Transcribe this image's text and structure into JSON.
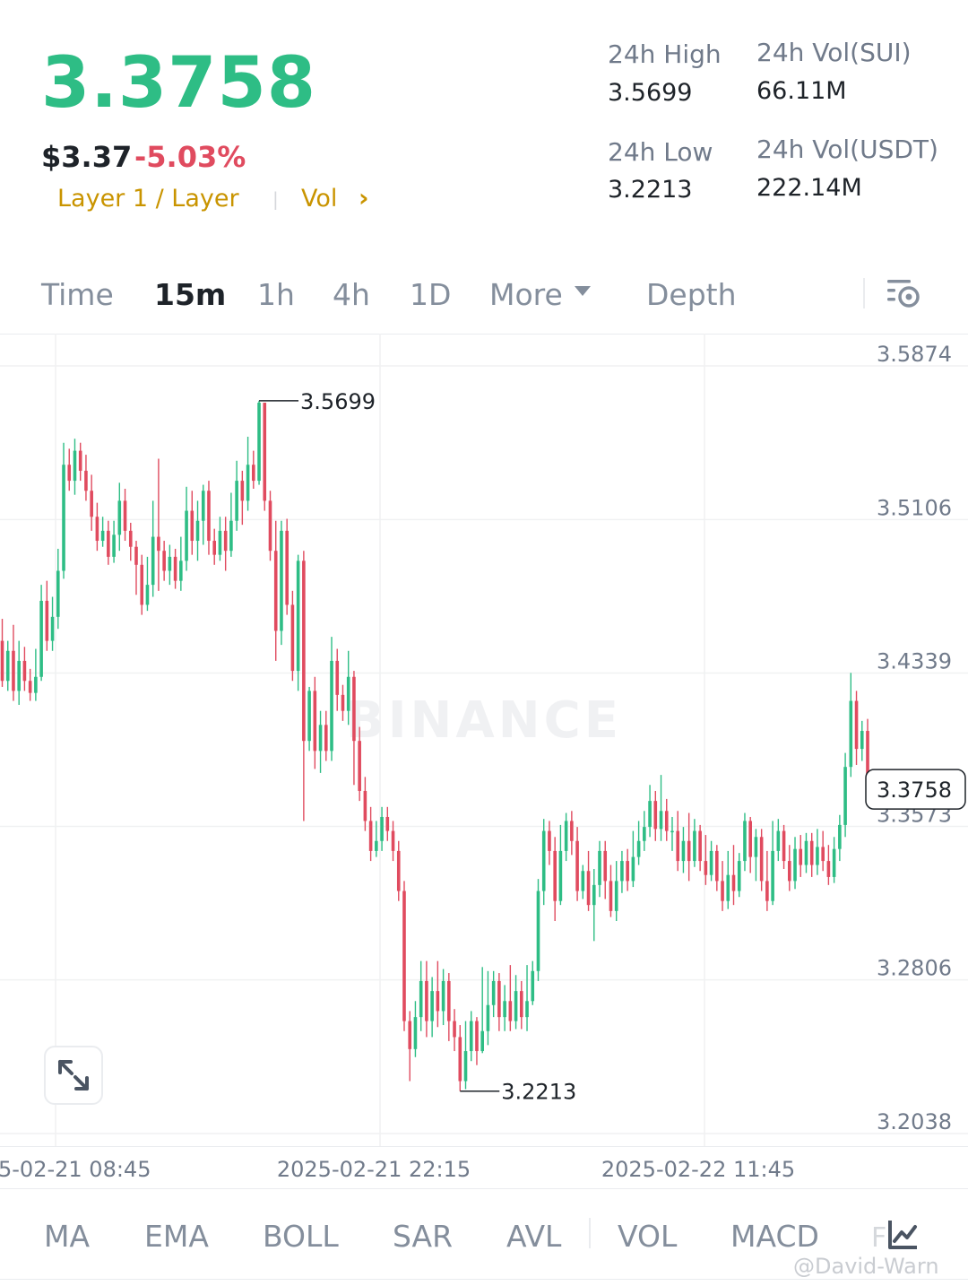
{
  "header": {
    "last_price": "3.3758",
    "usd_price": "$3.37",
    "change_pct": "-5.03%",
    "tag_layer": "Layer 1 / Layer",
    "tag_vol": "Vol",
    "tag_chevron": "›",
    "stats": {
      "high_label": "24h High",
      "high_value": "3.5699",
      "low_label": "24h Low",
      "low_value": "3.2213",
      "vol_base_label": "24h Vol(SUI)",
      "vol_base_value": "66.11M",
      "vol_quote_label": "24h Vol(USDT)",
      "vol_quote_value": "222.14M"
    }
  },
  "tabs": {
    "time": "Time",
    "m15": "15m",
    "h1": "1h",
    "h4": "4h",
    "d1": "1D",
    "more": "More",
    "depth": "Depth"
  },
  "indicators": {
    "ma": "MA",
    "ema": "EMA",
    "boll": "BOLL",
    "sar": "SAR",
    "avl": "AVL",
    "vol": "VOL",
    "macd": "MACD",
    "partial": "F"
  },
  "watermark": {
    "logo": "BINANCE",
    "handle": "@David-Warn"
  },
  "colors": {
    "up": "#2ebd85",
    "down": "#e04b5f",
    "accent": "#c99400",
    "grid": "#f0f1f2",
    "axis_text": "#707a8a"
  },
  "icons": {
    "settings": "chart-settings-icon",
    "expand": "expand-icon",
    "indicators": "indicator-chart-icon",
    "caret": "caret-down-icon"
  },
  "chart_data": {
    "type": "candlestick",
    "interval": "15m",
    "y_ticks": [
      3.5874,
      3.5106,
      3.4339,
      3.3573,
      3.2806,
      3.2038
    ],
    "ylim": [
      3.2038,
      3.5874
    ],
    "x_ticks": [
      "5-02-21 08:45",
      "2025-02-21 22:15",
      "2025-02-22 11:45"
    ],
    "last_price_label": "3.3758",
    "high_marker": "3.5699",
    "low_marker": "3.2213",
    "grid": true,
    "candles": [
      [
        3.45,
        3.43,
        3.461,
        3.427
      ],
      [
        3.43,
        3.445,
        3.45,
        3.425
      ],
      [
        3.445,
        3.425,
        3.458,
        3.42
      ],
      [
        3.425,
        3.44,
        3.45,
        3.418
      ],
      [
        3.44,
        3.43,
        3.447,
        3.425
      ],
      [
        3.43,
        3.424,
        3.436,
        3.42
      ],
      [
        3.424,
        3.432,
        3.446,
        3.42
      ],
      [
        3.432,
        3.47,
        3.478,
        3.43
      ],
      [
        3.47,
        3.45,
        3.48,
        3.445
      ],
      [
        3.45,
        3.462,
        3.472,
        3.445
      ],
      [
        3.462,
        3.485,
        3.496,
        3.456
      ],
      [
        3.485,
        3.538,
        3.549,
        3.481
      ],
      [
        3.538,
        3.53,
        3.546,
        3.525
      ],
      [
        3.53,
        3.545,
        3.551,
        3.523
      ],
      [
        3.545,
        3.535,
        3.549,
        3.53
      ],
      [
        3.535,
        3.525,
        3.543,
        3.52
      ],
      [
        3.525,
        3.512,
        3.533,
        3.505
      ],
      [
        3.512,
        3.5,
        3.519,
        3.495
      ],
      [
        3.5,
        3.505,
        3.512,
        3.497
      ],
      [
        3.505,
        3.492,
        3.51,
        3.488
      ],
      [
        3.492,
        3.503,
        3.51,
        3.489
      ],
      [
        3.503,
        3.52,
        3.529,
        3.495
      ],
      [
        3.52,
        3.505,
        3.526,
        3.5
      ],
      [
        3.505,
        3.497,
        3.509,
        3.49
      ],
      [
        3.497,
        3.488,
        3.5,
        3.473
      ],
      [
        3.488,
        3.468,
        3.493,
        3.463
      ],
      [
        3.468,
        3.478,
        3.492,
        3.465
      ],
      [
        3.478,
        3.502,
        3.52,
        3.472
      ],
      [
        3.502,
        3.495,
        3.541,
        3.475
      ],
      [
        3.495,
        3.485,
        3.5,
        3.48
      ],
      [
        3.485,
        3.492,
        3.498,
        3.478
      ],
      [
        3.492,
        3.48,
        3.496,
        3.476
      ],
      [
        3.48,
        3.49,
        3.502,
        3.475
      ],
      [
        3.49,
        3.515,
        3.527,
        3.485
      ],
      [
        3.515,
        3.5,
        3.525,
        3.493
      ],
      [
        3.5,
        3.51,
        3.52,
        3.49
      ],
      [
        3.51,
        3.525,
        3.528,
        3.498
      ],
      [
        3.525,
        3.5,
        3.53,
        3.493
      ],
      [
        3.5,
        3.493,
        3.506,
        3.488
      ],
      [
        3.493,
        3.505,
        3.512,
        3.49
      ],
      [
        3.505,
        3.495,
        3.512,
        3.485
      ],
      [
        3.495,
        3.51,
        3.524,
        3.492
      ],
      [
        3.51,
        3.53,
        3.54,
        3.505
      ],
      [
        3.53,
        3.52,
        3.535,
        3.508
      ],
      [
        3.52,
        3.538,
        3.552,
        3.515
      ],
      [
        3.538,
        3.53,
        3.545,
        3.526
      ],
      [
        3.53,
        3.569,
        3.57,
        3.528
      ],
      [
        3.569,
        3.52,
        3.569,
        3.515
      ],
      [
        3.52,
        3.495,
        3.525,
        3.49
      ],
      [
        3.495,
        3.455,
        3.51,
        3.44
      ],
      [
        3.455,
        3.505,
        3.51,
        3.448
      ],
      [
        3.505,
        3.468,
        3.511,
        3.463
      ],
      [
        3.468,
        3.435,
        3.475,
        3.43
      ],
      [
        3.435,
        3.49,
        3.493,
        3.425
      ],
      [
        3.49,
        3.4,
        3.495,
        3.36
      ],
      [
        3.4,
        3.425,
        3.427,
        3.395
      ],
      [
        3.425,
        3.395,
        3.432,
        3.386
      ],
      [
        3.395,
        3.408,
        3.415,
        3.384
      ],
      [
        3.408,
        3.395,
        3.415,
        3.39
      ],
      [
        3.395,
        3.44,
        3.452,
        3.39
      ],
      [
        3.44,
        3.423,
        3.446,
        3.415
      ],
      [
        3.423,
        3.415,
        3.428,
        3.41
      ],
      [
        3.415,
        3.432,
        3.445,
        3.408
      ],
      [
        3.432,
        3.4,
        3.435,
        3.378
      ],
      [
        3.4,
        3.375,
        3.407,
        3.37
      ],
      [
        3.375,
        3.36,
        3.382,
        3.355
      ],
      [
        3.36,
        3.345,
        3.367,
        3.34
      ],
      [
        3.345,
        3.35,
        3.36,
        3.342
      ],
      [
        3.35,
        3.362,
        3.367,
        3.345
      ],
      [
        3.362,
        3.355,
        3.367,
        3.35
      ],
      [
        3.355,
        3.345,
        3.36,
        3.34
      ],
      [
        3.345,
        3.325,
        3.35,
        3.32
      ],
      [
        3.325,
        3.26,
        3.33,
        3.255
      ],
      [
        3.26,
        3.246,
        3.265,
        3.23
      ],
      [
        3.246,
        3.262,
        3.27,
        3.242
      ],
      [
        3.262,
        3.28,
        3.29,
        3.255
      ],
      [
        3.28,
        3.26,
        3.29,
        3.252
      ],
      [
        3.26,
        3.275,
        3.282,
        3.252
      ],
      [
        3.275,
        3.265,
        3.29,
        3.257
      ],
      [
        3.265,
        3.28,
        3.286,
        3.258
      ],
      [
        3.28,
        3.26,
        3.284,
        3.25
      ],
      [
        3.26,
        3.252,
        3.266,
        3.245
      ],
      [
        3.252,
        3.23,
        3.258,
        3.225
      ],
      [
        3.23,
        3.245,
        3.26,
        3.226
      ],
      [
        3.245,
        3.26,
        3.265,
        3.24
      ],
      [
        3.26,
        3.245,
        3.262,
        3.238
      ],
      [
        3.245,
        3.255,
        3.287,
        3.244
      ],
      [
        3.255,
        3.268,
        3.285,
        3.248
      ],
      [
        3.268,
        3.28,
        3.285,
        3.262
      ],
      [
        3.28,
        3.262,
        3.284,
        3.255
      ],
      [
        3.262,
        3.27,
        3.278,
        3.255
      ],
      [
        3.27,
        3.26,
        3.288,
        3.255
      ],
      [
        3.26,
        3.275,
        3.283,
        3.256
      ],
      [
        3.275,
        3.262,
        3.28,
        3.256
      ],
      [
        3.262,
        3.27,
        3.288,
        3.255
      ],
      [
        3.27,
        3.285,
        3.29,
        3.268
      ],
      [
        3.285,
        3.325,
        3.331,
        3.28
      ],
      [
        3.325,
        3.355,
        3.361,
        3.318
      ],
      [
        3.355,
        3.345,
        3.36,
        3.338
      ],
      [
        3.345,
        3.32,
        3.352,
        3.31
      ],
      [
        3.32,
        3.345,
        3.358,
        3.318
      ],
      [
        3.345,
        3.36,
        3.364,
        3.34
      ],
      [
        3.36,
        3.35,
        3.365,
        3.343
      ],
      [
        3.35,
        3.325,
        3.357,
        3.32
      ],
      [
        3.325,
        3.335,
        3.338,
        3.321
      ],
      [
        3.335,
        3.318,
        3.345,
        3.315
      ],
      [
        3.318,
        3.328,
        3.336,
        3.3
      ],
      [
        3.328,
        3.345,
        3.35,
        3.322
      ],
      [
        3.345,
        3.33,
        3.35,
        3.321
      ],
      [
        3.33,
        3.315,
        3.338,
        3.312
      ],
      [
        3.315,
        3.33,
        3.34,
        3.31
      ],
      [
        3.33,
        3.34,
        3.345,
        3.324
      ],
      [
        3.34,
        3.33,
        3.346,
        3.325
      ],
      [
        3.33,
        3.342,
        3.355,
        3.327
      ],
      [
        3.342,
        3.35,
        3.36,
        3.338
      ],
      [
        3.35,
        3.357,
        3.365,
        3.345
      ],
      [
        3.357,
        3.37,
        3.378,
        3.352
      ],
      [
        3.37,
        3.356,
        3.375,
        3.35
      ],
      [
        3.356,
        3.365,
        3.383,
        3.35
      ],
      [
        3.365,
        3.355,
        3.371,
        3.35
      ],
      [
        3.355,
        3.355,
        3.362,
        3.345
      ],
      [
        3.355,
        3.34,
        3.365,
        3.335
      ],
      [
        3.34,
        3.35,
        3.357,
        3.334
      ],
      [
        3.35,
        3.34,
        3.364,
        3.33
      ],
      [
        3.34,
        3.355,
        3.361,
        3.337
      ],
      [
        3.355,
        3.34,
        3.358,
        3.335
      ],
      [
        3.34,
        3.333,
        3.353,
        3.328
      ],
      [
        3.333,
        3.345,
        3.35,
        3.33
      ],
      [
        3.345,
        3.33,
        3.348,
        3.325
      ],
      [
        3.33,
        3.32,
        3.34,
        3.315
      ],
      [
        3.32,
        3.333,
        3.345,
        3.316
      ],
      [
        3.333,
        3.325,
        3.348,
        3.318
      ],
      [
        3.325,
        3.34,
        3.344,
        3.322
      ],
      [
        3.34,
        3.36,
        3.364,
        3.335
      ],
      [
        3.36,
        3.342,
        3.362,
        3.334
      ],
      [
        3.342,
        3.352,
        3.356,
        3.33
      ],
      [
        3.352,
        3.33,
        3.356,
        3.325
      ],
      [
        3.33,
        3.32,
        3.345,
        3.315
      ],
      [
        3.32,
        3.345,
        3.36,
        3.318
      ],
      [
        3.345,
        3.355,
        3.361,
        3.34
      ],
      [
        3.355,
        3.34,
        3.358,
        3.336
      ],
      [
        3.34,
        3.33,
        3.348,
        3.325
      ],
      [
        3.33,
        3.346,
        3.352,
        3.326
      ],
      [
        3.346,
        3.338,
        3.353,
        3.332
      ],
      [
        3.338,
        3.35,
        3.354,
        3.334
      ],
      [
        3.35,
        3.338,
        3.354,
        3.332
      ],
      [
        3.338,
        3.347,
        3.356,
        3.333
      ],
      [
        3.347,
        3.34,
        3.355,
        3.335
      ],
      [
        3.34,
        3.332,
        3.348,
        3.328
      ],
      [
        3.332,
        3.346,
        3.352,
        3.329
      ],
      [
        3.346,
        3.358,
        3.363,
        3.34
      ],
      [
        3.358,
        3.387,
        3.394,
        3.352
      ],
      [
        3.387,
        3.42,
        3.434,
        3.382
      ],
      [
        3.42,
        3.396,
        3.425,
        3.388
      ],
      [
        3.396,
        3.405,
        3.41,
        3.39
      ],
      [
        3.405,
        3.376,
        3.411,
        3.37
      ]
    ]
  }
}
